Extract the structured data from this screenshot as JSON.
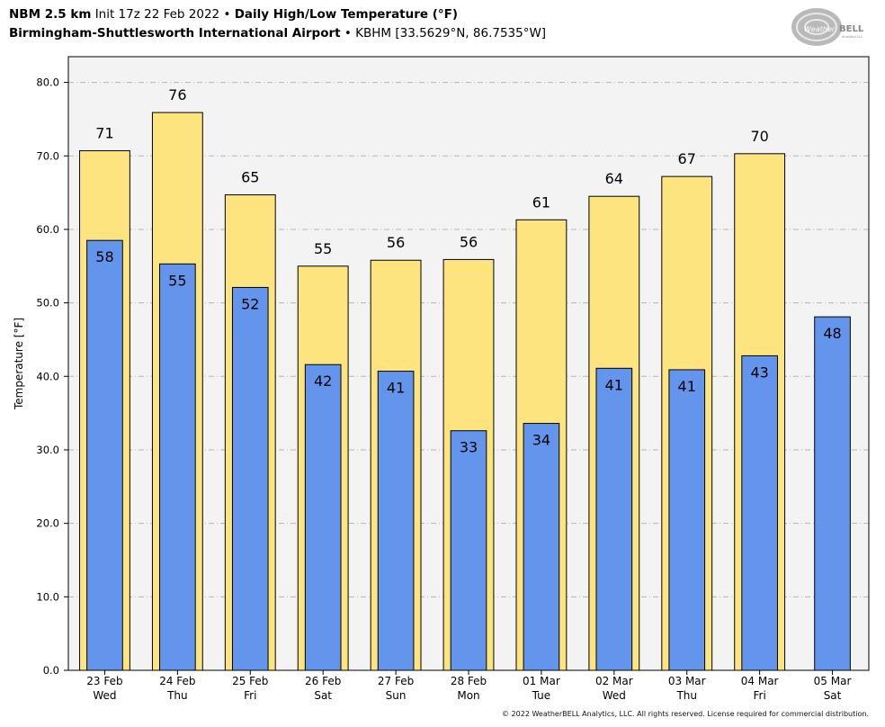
{
  "header": {
    "model": "NBM 2.5 km",
    "init": "Init 17z 22 Feb 2022",
    "bullet": "•",
    "product": "Daily High/Low Temperature (°F)",
    "station": "Birmingham-Shuttlesworth International Airport",
    "station_info": "KBHM [33.5629°N, 86.7535°W]"
  },
  "logo": {
    "text_a": "Weather",
    "text_b": "BELL",
    "sub": "Analytics LLC"
  },
  "footer": "© 2022 WeatherBELL Analytics, LLC. All rights reserved. License required for commercial distribution.",
  "colors": {
    "high": "#fde47f",
    "low": "#6495ed",
    "plot_bg": "#f3f3f3",
    "grid": "#b5b5b5"
  },
  "chart_data": {
    "type": "bar",
    "ylabel": "Temperature [°F]",
    "ylim": [
      0,
      83.5
    ],
    "yticks": [
      "0.0",
      "10.0",
      "20.0",
      "30.0",
      "40.0",
      "50.0",
      "60.0",
      "70.0",
      "80.0"
    ],
    "grid": true,
    "categories": [
      {
        "date": "23 Feb",
        "day": "Wed"
      },
      {
        "date": "24 Feb",
        "day": "Thu"
      },
      {
        "date": "25 Feb",
        "day": "Fri"
      },
      {
        "date": "26 Feb",
        "day": "Sat"
      },
      {
        "date": "27 Feb",
        "day": "Sun"
      },
      {
        "date": "28 Feb",
        "day": "Mon"
      },
      {
        "date": "01 Mar",
        "day": "Tue"
      },
      {
        "date": "02 Mar",
        "day": "Wed"
      },
      {
        "date": "03 Mar",
        "day": "Thu"
      },
      {
        "date": "04 Mar",
        "day": "Fri"
      },
      {
        "date": "05 Mar",
        "day": "Sat"
      }
    ],
    "series": [
      {
        "key": "high",
        "values": [
          70.7,
          75.9,
          64.7,
          55.0,
          55.8,
          55.9,
          61.3,
          64.5,
          67.2,
          70.3,
          null
        ],
        "labels": [
          "71",
          "76",
          "65",
          "55",
          "56",
          "56",
          "61",
          "64",
          "67",
          "70",
          ""
        ]
      },
      {
        "key": "low",
        "values": [
          58.5,
          55.3,
          52.1,
          41.6,
          40.7,
          32.6,
          33.6,
          41.1,
          40.9,
          42.8,
          48.1
        ],
        "labels": [
          "58",
          "55",
          "52",
          "42",
          "41",
          "33",
          "34",
          "41",
          "41",
          "43",
          "48"
        ]
      }
    ]
  }
}
